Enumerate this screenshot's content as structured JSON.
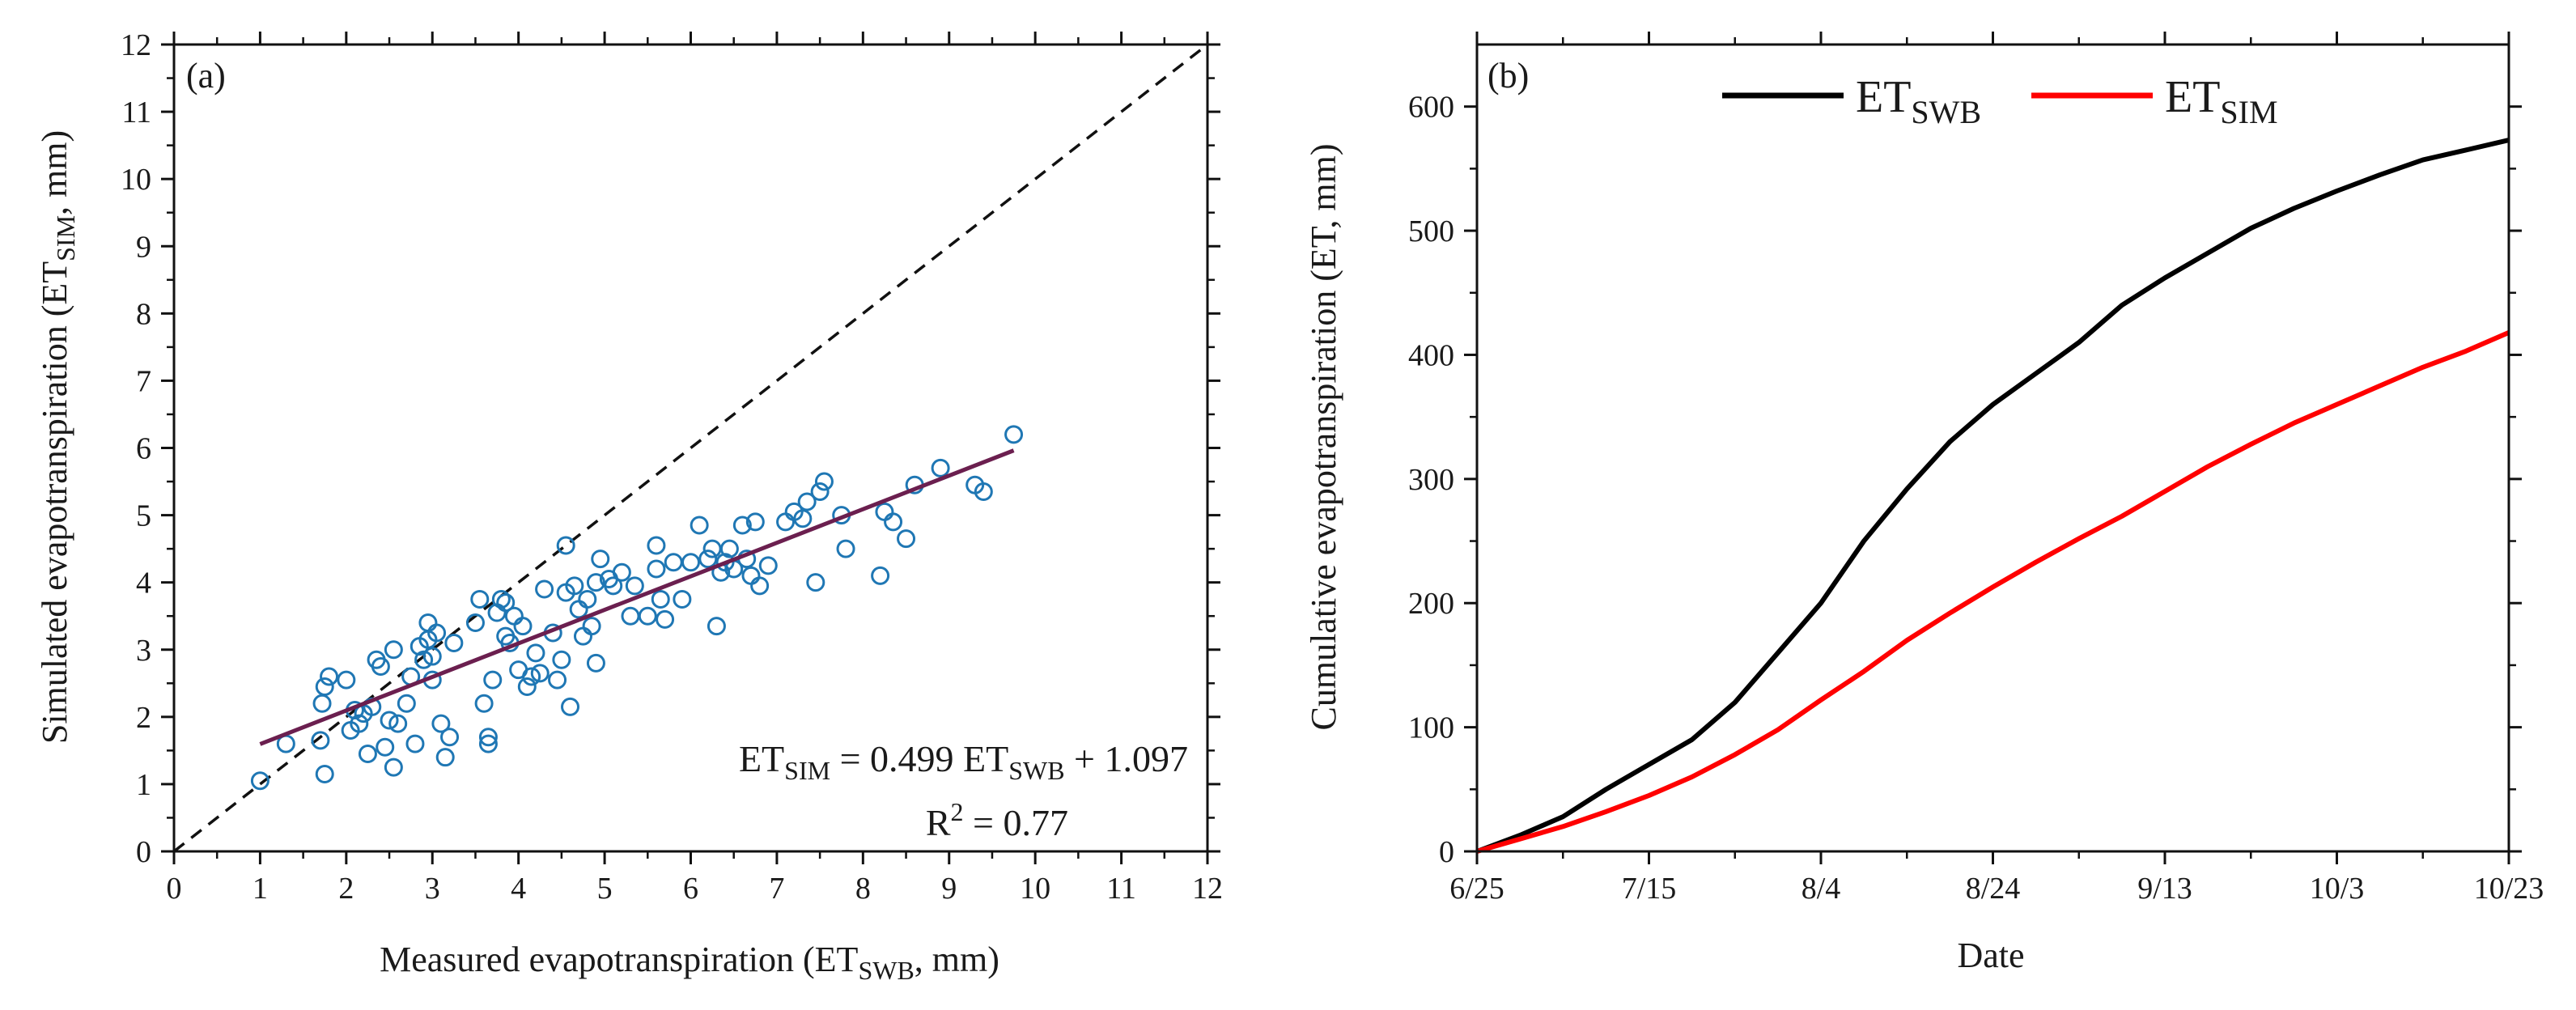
{
  "chart_data": [
    {
      "panel": "(a)",
      "type": "scatter",
      "xlabel": "Measured evapotranspiration (ET_SWB, mm)",
      "xlabel_parts": {
        "pre": "Measured evapotranspiration (ET",
        "sub": "SWB",
        "post": ", mm)"
      },
      "ylabel": "Simulated evapotranspiration (ET_SIM, mm)",
      "ylabel_parts": {
        "pre": "Simulated evapotranspiration (ET",
        "sub": "SIM",
        "post": ", mm)"
      },
      "xlim": [
        0,
        12
      ],
      "ylim": [
        0,
        12
      ],
      "xticks": [
        0,
        1,
        2,
        3,
        4,
        5,
        6,
        7,
        8,
        9,
        10,
        11,
        12
      ],
      "yticks": [
        0,
        1,
        2,
        3,
        4,
        5,
        6,
        7,
        8,
        9,
        10,
        11,
        12
      ],
      "marker_color": "#1f77b4",
      "fit_line_color": "#6b1f4f",
      "one_to_one_line": {
        "style": "dashed",
        "from": [
          0,
          0
        ],
        "to": [
          12,
          12
        ]
      },
      "fit": {
        "slope": 0.499,
        "intercept": 1.097,
        "x_range": [
          1.0,
          9.75
        ]
      },
      "equation": {
        "y_base": "ET",
        "y_sub": "SIM",
        "mid": " = 0.499 ET",
        "x_sub": "SWB",
        "tail": " + 1.097"
      },
      "r2": {
        "label": "R",
        "exp": "2",
        "value_text": " = 0.77"
      },
      "points": [
        [
          1.0,
          1.05
        ],
        [
          1.3,
          1.6
        ],
        [
          1.7,
          1.65
        ],
        [
          1.72,
          2.2
        ],
        [
          1.75,
          2.45
        ],
        [
          1.8,
          2.6
        ],
        [
          1.75,
          1.15
        ],
        [
          2.0,
          2.55
        ],
        [
          2.05,
          1.8
        ],
        [
          2.1,
          2.1
        ],
        [
          2.15,
          1.9
        ],
        [
          2.2,
          2.05
        ],
        [
          2.25,
          1.45
        ],
        [
          2.3,
          2.15
        ],
        [
          2.35,
          2.85
        ],
        [
          2.4,
          2.75
        ],
        [
          2.45,
          1.55
        ],
        [
          2.5,
          1.95
        ],
        [
          2.55,
          1.25
        ],
        [
          2.55,
          3.0
        ],
        [
          2.6,
          1.9
        ],
        [
          2.7,
          2.2
        ],
        [
          2.75,
          2.6
        ],
        [
          2.8,
          1.6
        ],
        [
          2.85,
          3.05
        ],
        [
          2.9,
          2.85
        ],
        [
          2.95,
          3.15
        ],
        [
          2.95,
          3.4
        ],
        [
          3.0,
          2.55
        ],
        [
          3.0,
          2.9
        ],
        [
          3.05,
          3.25
        ],
        [
          3.1,
          1.9
        ],
        [
          3.15,
          1.4
        ],
        [
          3.2,
          1.7
        ],
        [
          3.25,
          3.1
        ],
        [
          3.5,
          3.4
        ],
        [
          3.55,
          3.75
        ],
        [
          3.6,
          2.2
        ],
        [
          3.65,
          1.6
        ],
        [
          3.65,
          1.7
        ],
        [
          3.7,
          2.55
        ],
        [
          3.75,
          3.55
        ],
        [
          3.8,
          3.75
        ],
        [
          3.85,
          3.7
        ],
        [
          3.85,
          3.2
        ],
        [
          3.9,
          3.1
        ],
        [
          3.95,
          3.5
        ],
        [
          4.0,
          2.7
        ],
        [
          4.05,
          3.35
        ],
        [
          4.1,
          2.45
        ],
        [
          4.15,
          2.6
        ],
        [
          4.2,
          2.95
        ],
        [
          4.25,
          2.65
        ],
        [
          4.3,
          3.9
        ],
        [
          4.4,
          3.25
        ],
        [
          4.45,
          2.55
        ],
        [
          4.5,
          2.85
        ],
        [
          4.55,
          3.85
        ],
        [
          4.55,
          4.55
        ],
        [
          4.6,
          2.15
        ],
        [
          4.65,
          3.95
        ],
        [
          4.7,
          3.6
        ],
        [
          4.75,
          3.2
        ],
        [
          4.8,
          3.75
        ],
        [
          4.85,
          3.35
        ],
        [
          4.9,
          2.8
        ],
        [
          4.9,
          4.0
        ],
        [
          4.95,
          4.35
        ],
        [
          5.05,
          4.05
        ],
        [
          5.1,
          3.95
        ],
        [
          5.2,
          4.15
        ],
        [
          5.3,
          3.5
        ],
        [
          5.35,
          3.95
        ],
        [
          5.5,
          3.5
        ],
        [
          5.6,
          4.2
        ],
        [
          5.6,
          4.55
        ],
        [
          5.65,
          3.75
        ],
        [
          5.7,
          3.45
        ],
        [
          5.8,
          4.3
        ],
        [
          5.9,
          3.75
        ],
        [
          6.0,
          4.3
        ],
        [
          6.1,
          4.85
        ],
        [
          6.2,
          4.35
        ],
        [
          6.25,
          4.5
        ],
        [
          6.3,
          3.35
        ],
        [
          6.35,
          4.15
        ],
        [
          6.4,
          4.3
        ],
        [
          6.45,
          4.5
        ],
        [
          6.5,
          4.2
        ],
        [
          6.6,
          4.85
        ],
        [
          6.65,
          4.35
        ],
        [
          6.7,
          4.1
        ],
        [
          6.75,
          4.9
        ],
        [
          6.8,
          3.95
        ],
        [
          6.9,
          4.25
        ],
        [
          7.1,
          4.9
        ],
        [
          7.2,
          5.05
        ],
        [
          7.3,
          4.95
        ],
        [
          7.35,
          5.2
        ],
        [
          7.45,
          4.0
        ],
        [
          7.5,
          5.35
        ],
        [
          7.55,
          5.5
        ],
        [
          7.75,
          5.0
        ],
        [
          7.8,
          4.5
        ],
        [
          8.2,
          4.1
        ],
        [
          8.25,
          5.05
        ],
        [
          8.35,
          4.9
        ],
        [
          8.5,
          4.65
        ],
        [
          8.6,
          5.45
        ],
        [
          8.9,
          5.7
        ],
        [
          9.3,
          5.45
        ],
        [
          9.4,
          5.35
        ],
        [
          9.75,
          6.2
        ]
      ]
    },
    {
      "panel": "(b)",
      "type": "line",
      "xlabel": "Date",
      "ylabel": "Cumulative evapotranspiration (ET, mm)",
      "ylim": [
        0,
        650
      ],
      "yticks": [
        0,
        100,
        200,
        300,
        400,
        500,
        600
      ],
      "x_tick_days": [
        0,
        20,
        40,
        60,
        80,
        100,
        120
      ],
      "xticks": [
        "6/25",
        "7/15",
        "8/4",
        "8/24",
        "9/13",
        "10/3",
        "10/23"
      ],
      "xlim_days": [
        0,
        120
      ],
      "series": [
        {
          "name": "ET_SWB",
          "legend_base": "ET",
          "legend_sub": "SWB",
          "color": "#000000",
          "points": [
            [
              0,
              0
            ],
            [
              5,
              13
            ],
            [
              10,
              28
            ],
            [
              15,
              50
            ],
            [
              20,
              70
            ],
            [
              25,
              90
            ],
            [
              30,
              120
            ],
            [
              35,
              160
            ],
            [
              40,
              200
            ],
            [
              45,
              250
            ],
            [
              50,
              292
            ],
            [
              55,
              330
            ],
            [
              60,
              360
            ],
            [
              65,
              385
            ],
            [
              70,
              410
            ],
            [
              75,
              440
            ],
            [
              80,
              462
            ],
            [
              85,
              482
            ],
            [
              90,
              502
            ],
            [
              95,
              518
            ],
            [
              100,
              532
            ],
            [
              105,
              545
            ],
            [
              110,
              557
            ],
            [
              115,
              565
            ],
            [
              120,
              573
            ]
          ]
        },
        {
          "name": "ET_SIM",
          "legend_base": "ET",
          "legend_sub": "SIM",
          "color": "#ff0000",
          "points": [
            [
              0,
              0
            ],
            [
              5,
              10
            ],
            [
              10,
              20
            ],
            [
              15,
              32
            ],
            [
              20,
              45
            ],
            [
              25,
              60
            ],
            [
              30,
              78
            ],
            [
              35,
              98
            ],
            [
              40,
              122
            ],
            [
              45,
              145
            ],
            [
              50,
              170
            ],
            [
              55,
              192
            ],
            [
              60,
              213
            ],
            [
              65,
              233
            ],
            [
              70,
              252
            ],
            [
              75,
              270
            ],
            [
              80,
              290
            ],
            [
              85,
              310
            ],
            [
              90,
              328
            ],
            [
              95,
              345
            ],
            [
              100,
              360
            ],
            [
              105,
              375
            ],
            [
              110,
              390
            ],
            [
              115,
              403
            ],
            [
              120,
              418
            ]
          ]
        }
      ]
    }
  ]
}
